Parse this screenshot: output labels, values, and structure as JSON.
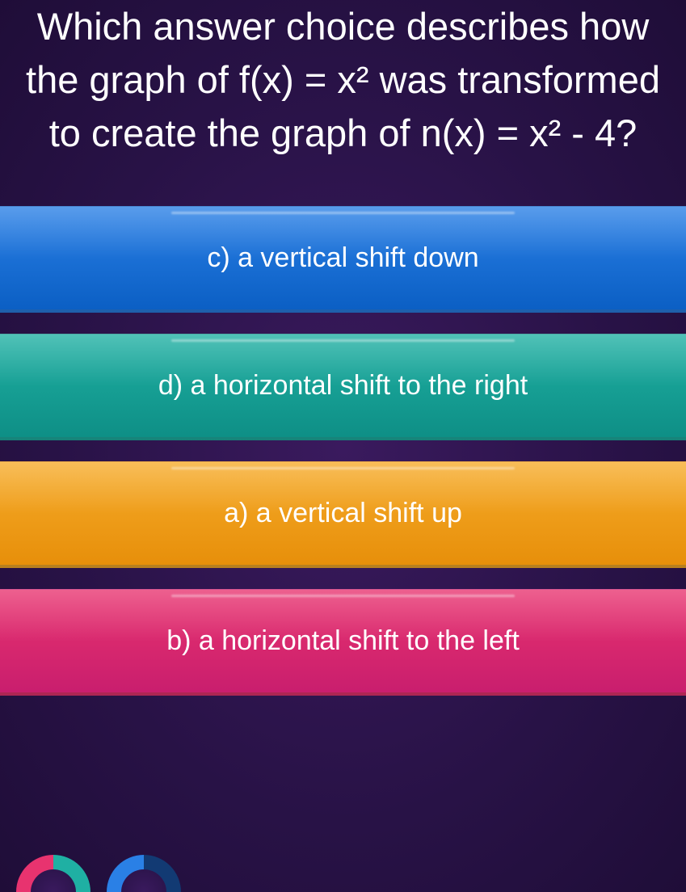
{
  "question": {
    "text": "Which answer choice describes how the graph of f(x) = x² was transformed to create the graph of n(x) = x² - 4?",
    "text_color": "#ffffff",
    "font_size": 47
  },
  "answers": [
    {
      "label": "c) a vertical shift down",
      "bg_gradient_top": "#2a80e6",
      "bg_gradient_bottom": "#0b5fc4",
      "text_color": "#ffffff"
    },
    {
      "label": "d) a horizontal shift to the right",
      "bg_gradient_top": "#1fb0a3",
      "bg_gradient_bottom": "#0e8f86",
      "text_color": "#ffffff"
    },
    {
      "label": "a) a vertical shift up",
      "bg_gradient_top": "#f6ab2a",
      "bg_gradient_bottom": "#e78f0a",
      "text_color": "#ffffff"
    },
    {
      "label": "b) a horizontal shift to the left",
      "bg_gradient_top": "#e8336f",
      "bg_gradient_bottom": "#c91e6e",
      "text_color": "#ffffff"
    }
  ],
  "background": {
    "center": "#3a1a5e",
    "edge": "#1f0d38"
  },
  "footer_circles": [
    {
      "left_color": "#e8336f",
      "right_color": "#1fb0a3"
    },
    {
      "left_color": "#2a80e6",
      "right_color": "#123a73"
    }
  ]
}
